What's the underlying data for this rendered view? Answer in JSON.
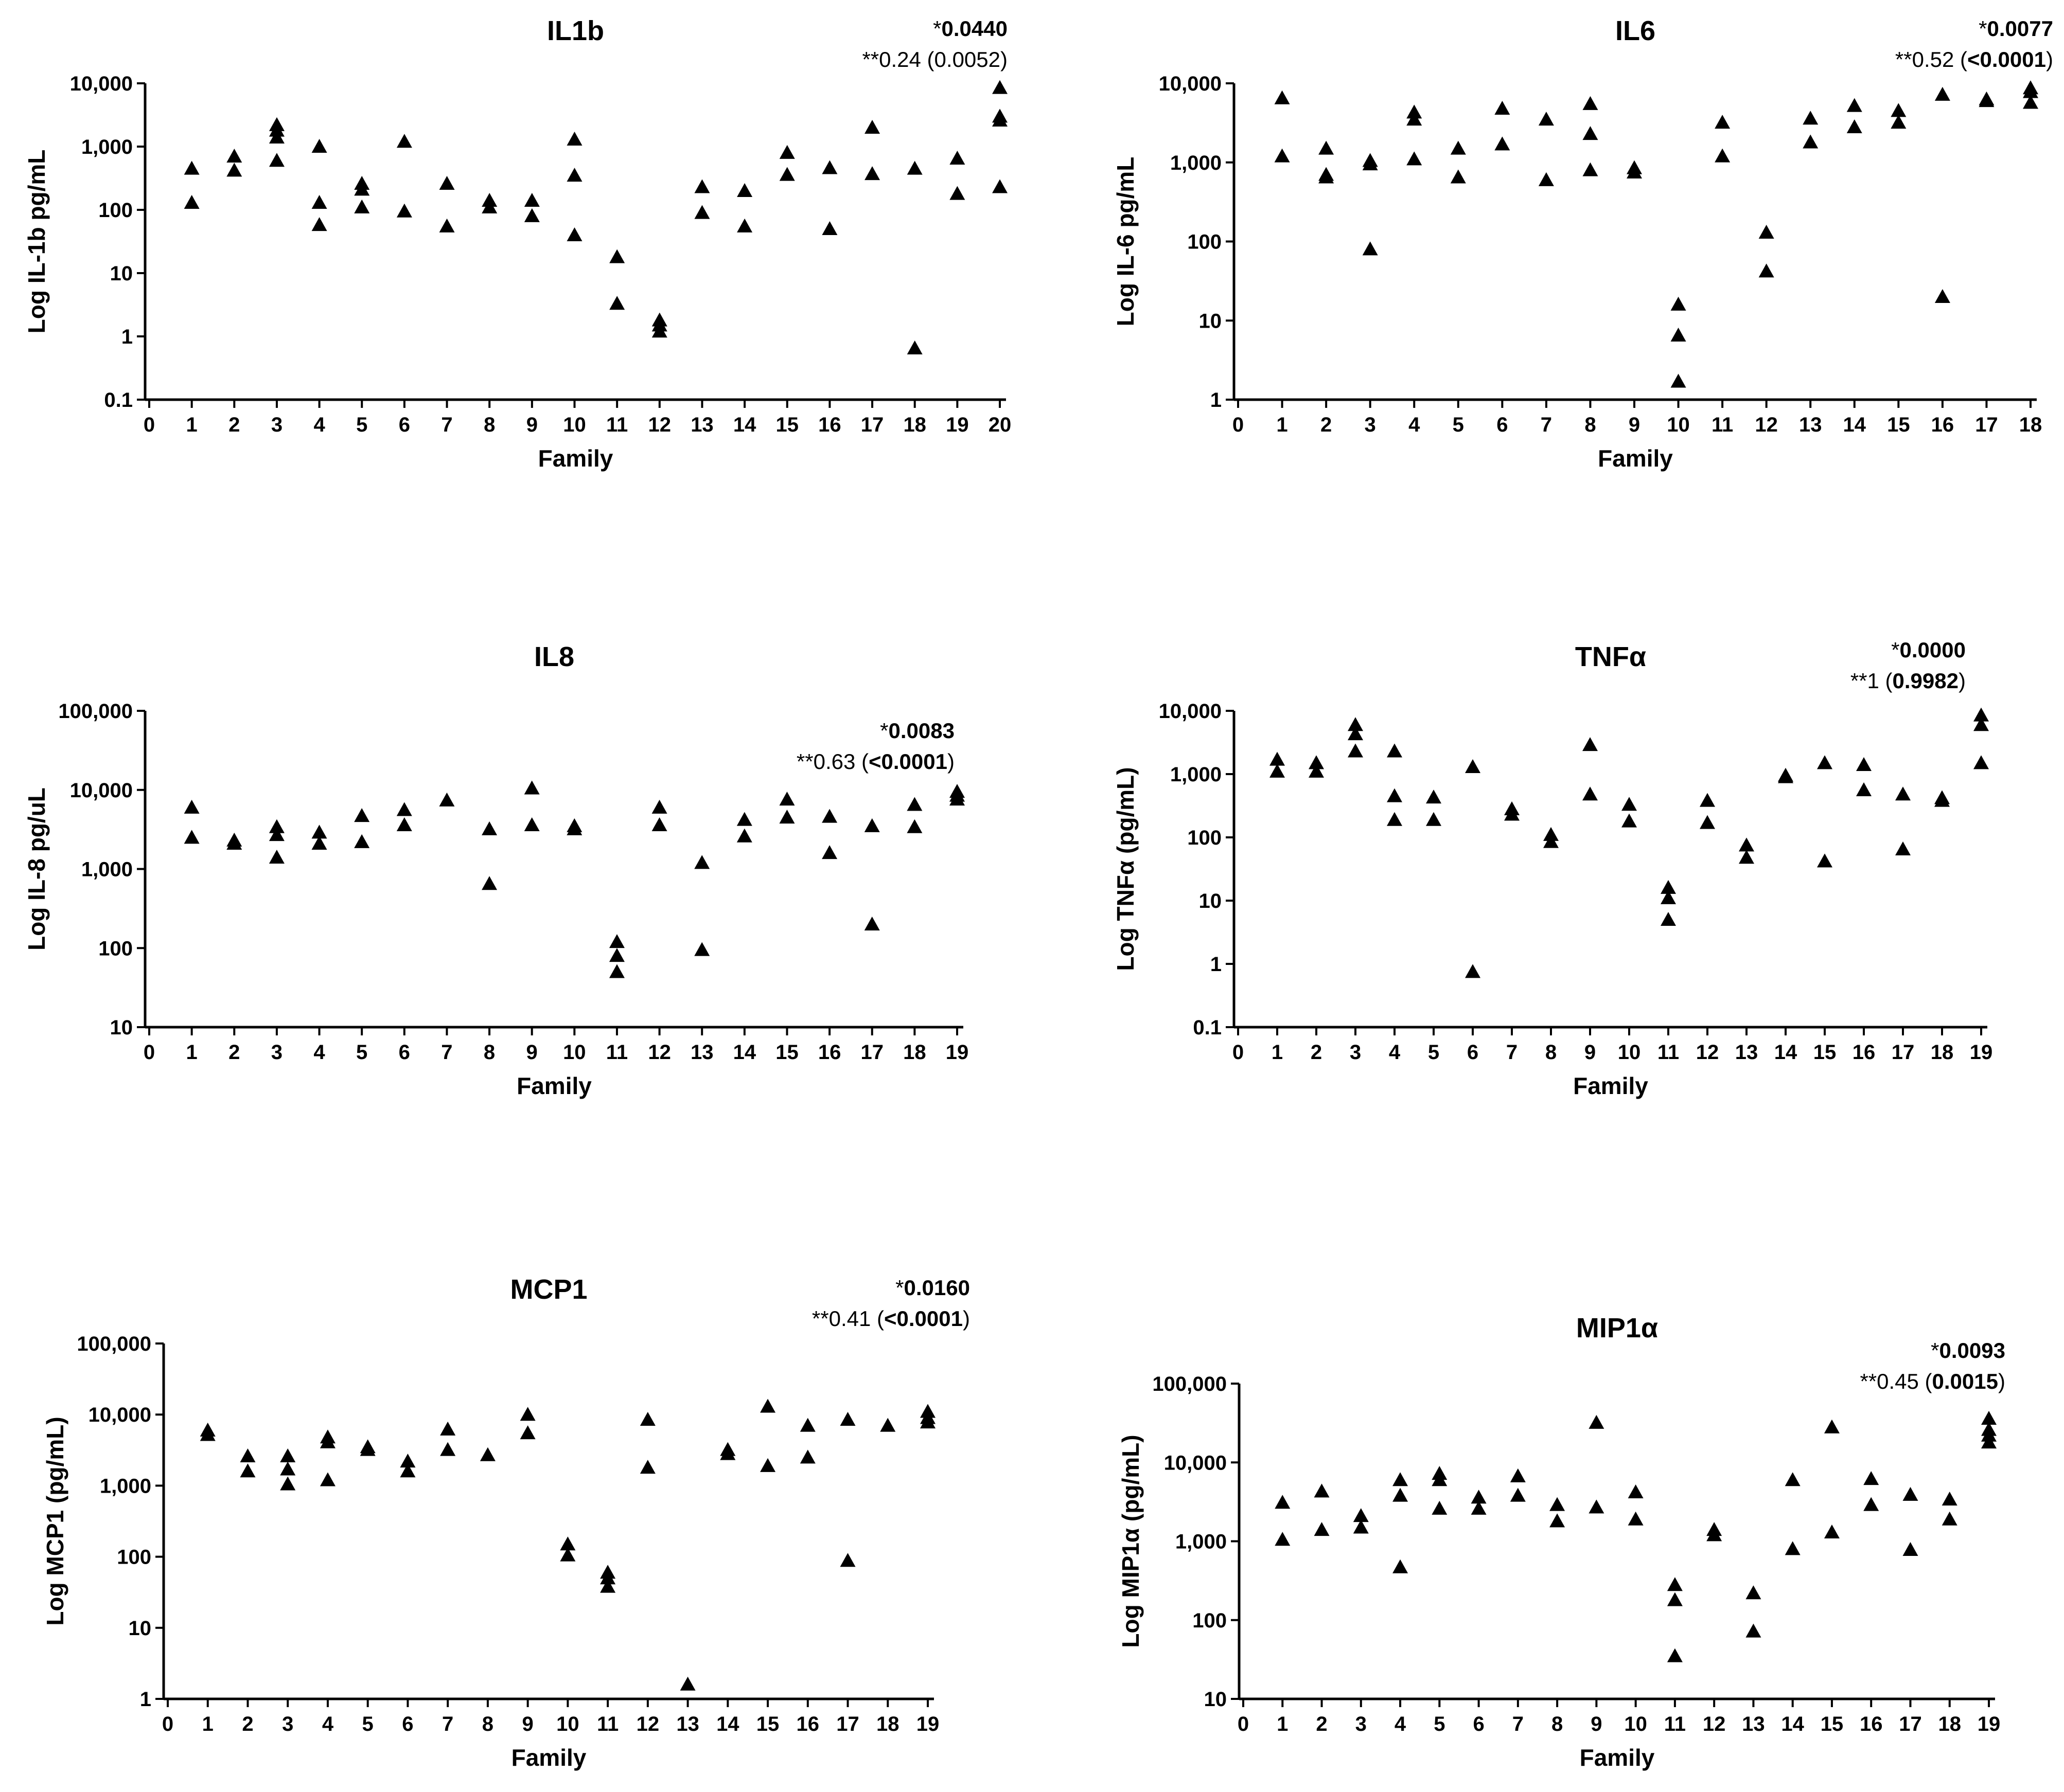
{
  "chart_data": [
    {
      "type": "scatter",
      "title": "IL1b",
      "xlabel": "Family",
      "ylabel": "Log IL-1b pg/mL",
      "yscale": "log",
      "xlim": [
        0,
        20
      ],
      "ylim": [
        0.1,
        10000
      ],
      "x_ticks": [
        0,
        1,
        2,
        3,
        4,
        5,
        6,
        7,
        8,
        9,
        10,
        11,
        12,
        13,
        14,
        15,
        16,
        17,
        18,
        19,
        20
      ],
      "y_ticks": [
        0.1,
        1,
        10,
        100,
        1000,
        10000
      ],
      "y_tick_labels": [
        "0.1",
        "1",
        "10",
        "100",
        "1,000",
        "10,000"
      ],
      "annotation_lines": [
        [
          {
            "text": "*",
            "bold": false
          },
          {
            "text": "0.0440",
            "bold": true
          }
        ],
        [
          {
            "text": "**0.24 (0.0052)",
            "bold": false
          }
        ]
      ],
      "marker": "triangle",
      "points": [
        [
          1,
          450
        ],
        [
          1,
          130
        ],
        [
          2,
          700
        ],
        [
          2,
          420
        ],
        [
          3,
          2200
        ],
        [
          3,
          1800
        ],
        [
          3,
          1400
        ],
        [
          3,
          600
        ],
        [
          4,
          1000
        ],
        [
          4,
          130
        ],
        [
          4,
          58
        ],
        [
          5,
          260
        ],
        [
          5,
          210
        ],
        [
          5,
          110
        ],
        [
          6,
          1200
        ],
        [
          6,
          95
        ],
        [
          7,
          260
        ],
        [
          7,
          55
        ],
        [
          8,
          140
        ],
        [
          8,
          110
        ],
        [
          9,
          140
        ],
        [
          9,
          80
        ],
        [
          10,
          1300
        ],
        [
          10,
          350
        ],
        [
          10,
          40
        ],
        [
          11,
          18
        ],
        [
          11,
          3.3
        ],
        [
          12,
          1.8
        ],
        [
          12,
          1.5
        ],
        [
          12,
          1.2
        ],
        [
          13,
          230
        ],
        [
          13,
          90
        ],
        [
          14,
          200
        ],
        [
          14,
          55
        ],
        [
          15,
          800
        ],
        [
          15,
          360
        ],
        [
          16,
          460
        ],
        [
          16,
          50
        ],
        [
          17,
          2000
        ],
        [
          17,
          370
        ],
        [
          18,
          450
        ],
        [
          18,
          0.65
        ],
        [
          19,
          650
        ],
        [
          19,
          180
        ],
        [
          20,
          8500
        ],
        [
          20,
          3000
        ],
        [
          20,
          2600
        ],
        [
          20,
          230
        ]
      ]
    },
    {
      "type": "scatter",
      "title": "IL6",
      "xlabel": "Family",
      "ylabel": "Log IL-6 pg/mL",
      "yscale": "log",
      "xlim": [
        0,
        18
      ],
      "ylim": [
        1,
        10000
      ],
      "x_ticks": [
        0,
        1,
        2,
        3,
        4,
        5,
        6,
        7,
        8,
        9,
        10,
        11,
        12,
        13,
        14,
        15,
        16,
        17,
        18
      ],
      "y_ticks": [
        1,
        10,
        100,
        1000,
        10000
      ],
      "y_tick_labels": [
        "1",
        "10",
        "100",
        "1,000",
        "10,000"
      ],
      "annotation_lines": [
        [
          {
            "text": "*",
            "bold": false
          },
          {
            "text": "0.0077",
            "bold": true
          }
        ],
        [
          {
            "text": "**0.52 (",
            "bold": false
          },
          {
            "text": "<0.0001",
            "bold": true
          },
          {
            "text": ")",
            "bold": false
          }
        ]
      ],
      "marker": "triangle",
      "points": [
        [
          1,
          6500
        ],
        [
          1,
          1200
        ],
        [
          2,
          1500
        ],
        [
          2,
          700
        ],
        [
          2,
          650
        ],
        [
          3,
          1050
        ],
        [
          3,
          950
        ],
        [
          3,
          80
        ],
        [
          4,
          4300
        ],
        [
          4,
          3500
        ],
        [
          4,
          1100
        ],
        [
          5,
          1500
        ],
        [
          5,
          650
        ],
        [
          6,
          4800
        ],
        [
          6,
          1700
        ],
        [
          7,
          3500
        ],
        [
          7,
          600
        ],
        [
          8,
          5500
        ],
        [
          8,
          2300
        ],
        [
          8,
          800
        ],
        [
          9,
          850
        ],
        [
          9,
          750
        ],
        [
          10,
          16
        ],
        [
          10,
          6.5
        ],
        [
          10,
          1.7
        ],
        [
          11,
          3200
        ],
        [
          11,
          1200
        ],
        [
          12,
          130
        ],
        [
          12,
          42
        ],
        [
          13,
          3600
        ],
        [
          13,
          1800
        ],
        [
          14,
          5200
        ],
        [
          14,
          2800
        ],
        [
          15,
          4500
        ],
        [
          15,
          3200
        ],
        [
          16,
          7200
        ],
        [
          16,
          20
        ],
        [
          17,
          6300
        ],
        [
          17,
          6000
        ],
        [
          18,
          8700
        ],
        [
          18,
          7800
        ],
        [
          18,
          5700
        ]
      ]
    },
    {
      "type": "scatter",
      "title": "IL8",
      "xlabel": "Family",
      "ylabel": "Log IL-8 pg/uL",
      "yscale": "log",
      "xlim": [
        0,
        19
      ],
      "ylim": [
        10,
        100000
      ],
      "x_ticks": [
        0,
        1,
        2,
        3,
        4,
        5,
        6,
        7,
        8,
        9,
        10,
        11,
        12,
        13,
        14,
        15,
        16,
        17,
        18,
        19
      ],
      "y_ticks": [
        10,
        100,
        1000,
        10000,
        100000
      ],
      "y_tick_labels": [
        "10",
        "100",
        "1,000",
        "10,000",
        "100,000"
      ],
      "annotation_lines": [
        [
          {
            "text": "*",
            "bold": false
          },
          {
            "text": "0.0083",
            "bold": true
          }
        ],
        [
          {
            "text": "**0.63 (",
            "bold": false
          },
          {
            "text": "<0.0001",
            "bold": true
          },
          {
            "text": ")",
            "bold": false
          }
        ]
      ],
      "marker": "triangle",
      "points": [
        [
          1,
          6000
        ],
        [
          1,
          2500
        ],
        [
          2,
          2300
        ],
        [
          2,
          2100
        ],
        [
          3,
          3400
        ],
        [
          3,
          2700
        ],
        [
          3,
          1400
        ],
        [
          4,
          2900
        ],
        [
          4,
          2100
        ],
        [
          5,
          4700
        ],
        [
          5,
          2200
        ],
        [
          6,
          5600
        ],
        [
          6,
          3600
        ],
        [
          7,
          7400
        ],
        [
          8,
          3200
        ],
        [
          8,
          650
        ],
        [
          9,
          10500
        ],
        [
          9,
          3600
        ],
        [
          10,
          3500
        ],
        [
          10,
          3200
        ],
        [
          11,
          120
        ],
        [
          11,
          80
        ],
        [
          11,
          50
        ],
        [
          12,
          6000
        ],
        [
          12,
          3600
        ],
        [
          13,
          1200
        ],
        [
          13,
          95
        ],
        [
          14,
          4200
        ],
        [
          14,
          2600
        ],
        [
          15,
          7600
        ],
        [
          15,
          4500
        ],
        [
          16,
          4600
        ],
        [
          16,
          1600
        ],
        [
          17,
          3500
        ],
        [
          17,
          200
        ],
        [
          18,
          6500
        ],
        [
          18,
          3400
        ],
        [
          19,
          9500
        ],
        [
          19,
          8500
        ],
        [
          19,
          7600
        ]
      ]
    },
    {
      "type": "scatter",
      "title": "TNFα",
      "xlabel": "Family",
      "ylabel": "Log TNFα (pg/mL)",
      "yscale": "log",
      "xlim": [
        0,
        19
      ],
      "ylim": [
        0.1,
        10000
      ],
      "x_ticks": [
        0,
        1,
        2,
        3,
        4,
        5,
        6,
        7,
        8,
        9,
        10,
        11,
        12,
        13,
        14,
        15,
        16,
        17,
        18,
        19
      ],
      "y_ticks": [
        0.1,
        1,
        10,
        100,
        1000,
        10000
      ],
      "y_tick_labels": [
        "0.1",
        "1",
        "10",
        "100",
        "1,000",
        "10,000"
      ],
      "annotation_lines": [
        [
          {
            "text": "*",
            "bold": false
          },
          {
            "text": "0.0000",
            "bold": true
          }
        ],
        [
          {
            "text": "**1 (",
            "bold": false
          },
          {
            "text": "0.9982",
            "bold": true
          },
          {
            "text": ")",
            "bold": false
          }
        ]
      ],
      "marker": "triangle",
      "points": [
        [
          1,
          1700
        ],
        [
          1,
          1100
        ],
        [
          2,
          1500
        ],
        [
          2,
          1100
        ],
        [
          3,
          6000
        ],
        [
          3,
          4300
        ],
        [
          3,
          2300
        ],
        [
          4,
          2300
        ],
        [
          4,
          450
        ],
        [
          4,
          190
        ],
        [
          5,
          430
        ],
        [
          5,
          190
        ],
        [
          6,
          1300
        ],
        [
          6,
          0.75
        ],
        [
          7,
          280
        ],
        [
          7,
          230
        ],
        [
          8,
          110
        ],
        [
          8,
          85
        ],
        [
          9,
          2900
        ],
        [
          9,
          480
        ],
        [
          10,
          330
        ],
        [
          10,
          180
        ],
        [
          11,
          16
        ],
        [
          11,
          11
        ],
        [
          11,
          5
        ],
        [
          12,
          380
        ],
        [
          12,
          170
        ],
        [
          13,
          75
        ],
        [
          13,
          48
        ],
        [
          14,
          950
        ],
        [
          14,
          900
        ],
        [
          15,
          1500
        ],
        [
          15,
          42
        ],
        [
          16,
          1400
        ],
        [
          16,
          560
        ],
        [
          17,
          480
        ],
        [
          17,
          65
        ],
        [
          18,
          420
        ],
        [
          18,
          380
        ],
        [
          19,
          8500
        ],
        [
          19,
          6000
        ],
        [
          19,
          1500
        ]
      ]
    },
    {
      "type": "scatter",
      "title": "MCP1",
      "xlabel": "Family",
      "ylabel": "Log MCP1 (pg/mL)",
      "yscale": "log",
      "xlim": [
        0,
        19
      ],
      "ylim": [
        1,
        100000
      ],
      "x_ticks": [
        0,
        1,
        2,
        3,
        4,
        5,
        6,
        7,
        8,
        9,
        10,
        11,
        12,
        13,
        14,
        15,
        16,
        17,
        18,
        19
      ],
      "y_ticks": [
        1,
        10,
        100,
        1000,
        10000,
        100000
      ],
      "y_tick_labels": [
        "1",
        "10",
        "100",
        "1,000",
        "10,000",
        "100,000"
      ],
      "annotation_lines": [
        [
          {
            "text": "*",
            "bold": false
          },
          {
            "text": "0.0160",
            "bold": true
          }
        ],
        [
          {
            "text": "**0.41 (",
            "bold": false
          },
          {
            "text": "<0.0001",
            "bold": true
          },
          {
            "text": ")",
            "bold": false
          }
        ]
      ],
      "marker": "triangle",
      "points": [
        [
          1,
          6000
        ],
        [
          1,
          5200
        ],
        [
          2,
          2600
        ],
        [
          2,
          1600
        ],
        [
          3,
          2600
        ],
        [
          3,
          1700
        ],
        [
          3,
          1050
        ],
        [
          4,
          4800
        ],
        [
          4,
          4100
        ],
        [
          4,
          1200
        ],
        [
          5,
          3500
        ],
        [
          5,
          3200
        ],
        [
          6,
          2200
        ],
        [
          6,
          1600
        ],
        [
          7,
          6200
        ],
        [
          7,
          3200
        ],
        [
          8,
          2700
        ],
        [
          9,
          10000
        ],
        [
          9,
          5500
        ],
        [
          10,
          150
        ],
        [
          10,
          105
        ],
        [
          11,
          60
        ],
        [
          11,
          50
        ],
        [
          11,
          38
        ],
        [
          12,
          8500
        ],
        [
          12,
          1800
        ],
        [
          13,
          1.6
        ],
        [
          14,
          3200
        ],
        [
          14,
          2800
        ],
        [
          15,
          13000
        ],
        [
          15,
          1900
        ],
        [
          16,
          7000
        ],
        [
          16,
          2500
        ],
        [
          17,
          8500
        ],
        [
          17,
          88
        ],
        [
          18,
          7000
        ],
        [
          19,
          11000
        ],
        [
          19,
          9000
        ],
        [
          19,
          7800
        ]
      ]
    },
    {
      "type": "scatter",
      "title": "MIP1α",
      "xlabel": "Family",
      "ylabel": "Log MIP1α (pg/mL)",
      "yscale": "log",
      "xlim": [
        0,
        19
      ],
      "ylim": [
        10,
        100000
      ],
      "x_ticks": [
        0,
        1,
        2,
        3,
        4,
        5,
        6,
        7,
        8,
        9,
        10,
        11,
        12,
        13,
        14,
        15,
        16,
        17,
        18,
        19
      ],
      "y_ticks": [
        10,
        100,
        1000,
        10000,
        100000
      ],
      "y_tick_labels": [
        "10",
        "100",
        "1,000",
        "10,000",
        "100,000"
      ],
      "annotation_lines": [
        [
          {
            "text": "*",
            "bold": false
          },
          {
            "text": "0.0093",
            "bold": true
          }
        ],
        [
          {
            "text": "**0.45 (",
            "bold": false
          },
          {
            "text": "0.0015",
            "bold": true
          },
          {
            "text": ")",
            "bold": false
          }
        ]
      ],
      "marker": "triangle",
      "points": [
        [
          1,
          3100
        ],
        [
          1,
          1050
        ],
        [
          2,
          4300
        ],
        [
          2,
          1400
        ],
        [
          3,
          2100
        ],
        [
          3,
          1500
        ],
        [
          4,
          6000
        ],
        [
          4,
          3800
        ],
        [
          4,
          470
        ],
        [
          5,
          7200
        ],
        [
          5,
          6000
        ],
        [
          5,
          2600
        ],
        [
          6,
          3600
        ],
        [
          6,
          2600
        ],
        [
          7,
          6700
        ],
        [
          7,
          3800
        ],
        [
          8,
          2900
        ],
        [
          8,
          1800
        ],
        [
          9,
          32000
        ],
        [
          9,
          2700
        ],
        [
          10,
          4200
        ],
        [
          10,
          1900
        ],
        [
          11,
          280
        ],
        [
          11,
          180
        ],
        [
          11,
          35
        ],
        [
          12,
          1400
        ],
        [
          12,
          1200
        ],
        [
          13,
          220
        ],
        [
          13,
          72
        ],
        [
          14,
          6000
        ],
        [
          14,
          800
        ],
        [
          15,
          28000
        ],
        [
          15,
          1300
        ],
        [
          16,
          6200
        ],
        [
          16,
          2900
        ],
        [
          17,
          3900
        ],
        [
          17,
          780
        ],
        [
          18,
          3400
        ],
        [
          18,
          1900
        ],
        [
          19,
          36000
        ],
        [
          19,
          26000
        ],
        [
          19,
          22000
        ],
        [
          19,
          18000
        ]
      ]
    }
  ]
}
